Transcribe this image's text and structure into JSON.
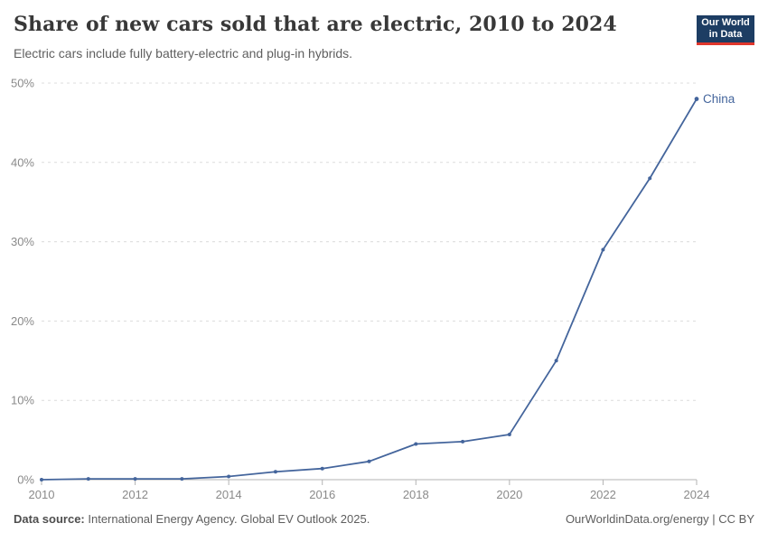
{
  "header": {
    "title": "Share of new cars sold that are electric, 2010 to 2024",
    "subtitle": "Electric cars include fully battery-electric and plug-in hybrids."
  },
  "logo": {
    "line1": "Our World",
    "line2": "in Data"
  },
  "chart_data": {
    "type": "line",
    "title": "Share of new cars sold that are electric, 2010 to 2024",
    "x": [
      2010,
      2011,
      2012,
      2013,
      2014,
      2015,
      2016,
      2017,
      2018,
      2019,
      2020,
      2021,
      2022,
      2023,
      2024
    ],
    "series": [
      {
        "name": "China",
        "color": "#44659c",
        "values": [
          0,
          0.1,
          0.1,
          0.1,
          0.4,
          1.0,
          1.4,
          2.3,
          4.5,
          4.8,
          5.7,
          15,
          29,
          38,
          48
        ]
      }
    ],
    "xlabel": "",
    "ylabel": "",
    "ylim": [
      0,
      50
    ],
    "yticks": [
      0,
      10,
      20,
      30,
      40,
      50
    ],
    "ytick_labels": [
      "0%",
      "10%",
      "20%",
      "30%",
      "40%",
      "50%"
    ],
    "xticks": [
      2010,
      2012,
      2014,
      2016,
      2018,
      2020,
      2022,
      2024
    ],
    "grid": "horizontal-dashed",
    "legend_position": "end-of-line-label"
  },
  "footer": {
    "source_label": "Data source:",
    "source_text": "International Energy Agency. Global EV Outlook 2025.",
    "right_text": "OurWorldinData.org/energy | CC BY"
  },
  "colors": {
    "accent_line": "#44659c",
    "logo_bg": "#1d3d63",
    "logo_accent": "#e0362c",
    "grid": "#dcdcdc",
    "axis": "#b3b3b3",
    "tick_label": "#8a8a8a"
  }
}
